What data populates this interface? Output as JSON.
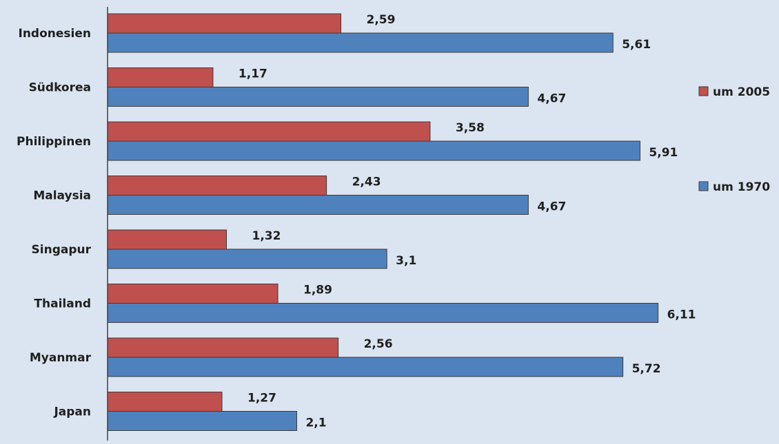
{
  "chart_data": {
    "type": "bar",
    "orientation": "horizontal",
    "categories": [
      "Indonesien",
      "Südkorea",
      "Philippinen",
      "Malaysia",
      "Singapur",
      "Thailand",
      "Myanmar",
      "Japan"
    ],
    "series": [
      {
        "name": "um 2005",
        "color": "#c0504d",
        "values": [
          2.59,
          1.17,
          3.58,
          2.43,
          1.32,
          1.89,
          2.56,
          1.27
        ],
        "labels": [
          "2,59",
          "1,17",
          "3,58",
          "2,43",
          "1,32",
          "1,89",
          "2,56",
          "1,27"
        ]
      },
      {
        "name": "um 1970",
        "color": "#4f81bd",
        "values": [
          5.61,
          4.67,
          5.91,
          4.67,
          3.1,
          6.11,
          5.72,
          2.1
        ],
        "labels": [
          "5,61",
          "4,67",
          "5,91",
          "4,67",
          "3,1",
          "6,11",
          "5,72",
          "2,1"
        ]
      }
    ],
    "title": "",
    "xlabel": "",
    "ylabel": "",
    "xlim": [
      0,
      6.6
    ],
    "grid": false,
    "legend": "right",
    "background": "#dbe5f1"
  }
}
